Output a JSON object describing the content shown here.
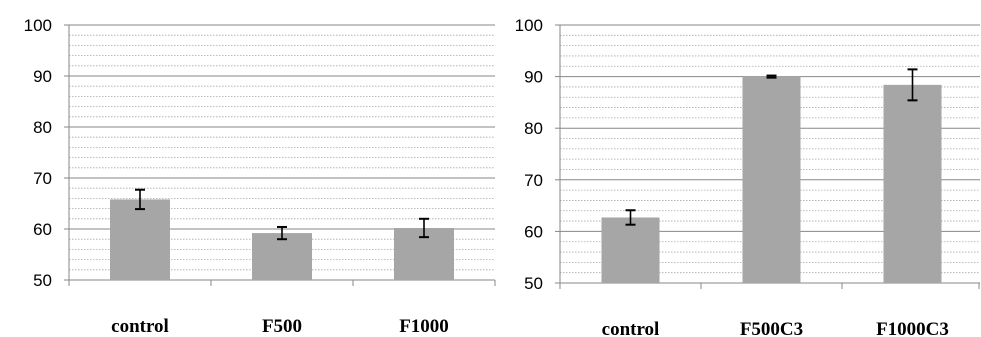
{
  "chart_data": [
    {
      "type": "bar",
      "title": "",
      "xlabel": "",
      "ylabel": "",
      "categories": [
        "control",
        "F500",
        "F1000"
      ],
      "values": [
        65.8,
        59.2,
        60.2
      ],
      "errors": [
        1.9,
        1.2,
        1.8
      ],
      "ylim": [
        50,
        100
      ],
      "yticks": [
        50,
        60,
        70,
        80,
        90,
        100
      ],
      "major_grid": true,
      "minor_grid": true,
      "bar_color": "#a6a6a6",
      "legend": "none"
    },
    {
      "type": "bar",
      "title": "",
      "xlabel": "",
      "ylabel": "",
      "categories": [
        "control",
        "F500C3",
        "F1000C3"
      ],
      "values": [
        62.7,
        90.0,
        88.4
      ],
      "errors": [
        1.4,
        0.2,
        3.0
      ],
      "ylim": [
        50,
        100
      ],
      "yticks": [
        50,
        60,
        70,
        80,
        90,
        100
      ],
      "major_grid": true,
      "minor_grid": true,
      "bar_color": "#a6a6a6",
      "legend": "none"
    }
  ]
}
